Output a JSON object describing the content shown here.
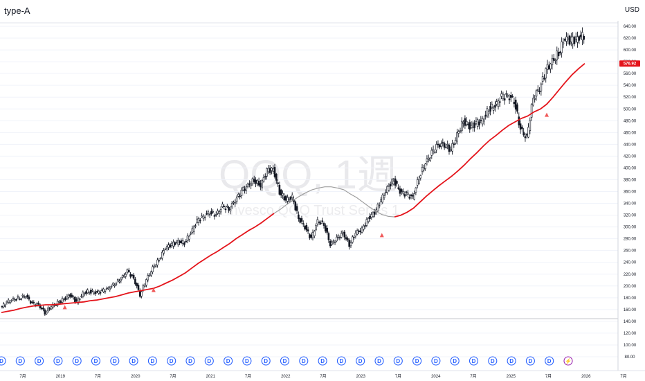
{
  "header": {
    "title": "type-A",
    "currency": "USD"
  },
  "watermark": {
    "symbol": "QQQ, 1週",
    "description": "Invesco QQQ Trust Series 1"
  },
  "price_label": {
    "value": "576.92",
    "color": "#e4141b"
  },
  "colors": {
    "ma": "#e4141b",
    "ma_gray": "#9e9e9e",
    "candles": "#131722",
    "arrow": "#f05a5a",
    "dividend": "#2962ff",
    "split": "#9c27b0"
  },
  "icons": {
    "dividend": "dividend-badge-icon",
    "split": "split-badge-icon",
    "signal": "up-triangle-icon"
  },
  "chart_data": {
    "type": "candlestick",
    "y_scale": "linear",
    "ylim": [
      80,
      640
    ],
    "y_ticks": [
      "640.00",
      "620.00",
      "600.00",
      "580.00",
      "560.00",
      "540.00",
      "520.00",
      "500.00",
      "480.00",
      "460.00",
      "440.00",
      "420.00",
      "400.00",
      "380.00",
      "360.00",
      "340.00",
      "320.00",
      "300.00",
      "280.00",
      "260.00",
      "240.00",
      "220.00",
      "200.00",
      "180.00",
      "160.00",
      "140.00",
      "120.00",
      "100.00",
      "80.00"
    ],
    "x_ticks": [
      "7月",
      "2019",
      "7月",
      "2020",
      "7月",
      "2021",
      "7月",
      "2022",
      "7月",
      "2023",
      "7月",
      "2024",
      "7月",
      "2025",
      "7月",
      "2026",
      "7月"
    ],
    "x": [
      "2018-05",
      "2018-06",
      "2018-07",
      "2018-08",
      "2018-09",
      "2018-10",
      "2018-11",
      "2018-12",
      "2019-01",
      "2019-02",
      "2019-03",
      "2019-04",
      "2019-05",
      "2019-06",
      "2019-07",
      "2019-08",
      "2019-09",
      "2019-10",
      "2019-11",
      "2019-12",
      "2020-01",
      "2020-02",
      "2020-03",
      "2020-04",
      "2020-05",
      "2020-06",
      "2020-07",
      "2020-08",
      "2020-09",
      "2020-10",
      "2020-11",
      "2020-12",
      "2021-01",
      "2021-02",
      "2021-03",
      "2021-04",
      "2021-05",
      "2021-06",
      "2021-07",
      "2021-08",
      "2021-09",
      "2021-10",
      "2021-11",
      "2021-12",
      "2022-01",
      "2022-02",
      "2022-03",
      "2022-04",
      "2022-05",
      "2022-06",
      "2022-07",
      "2022-08",
      "2022-09",
      "2022-10",
      "2022-11",
      "2022-12",
      "2023-01",
      "2023-02",
      "2023-03",
      "2023-04",
      "2023-05",
      "2023-06",
      "2023-07",
      "2023-08",
      "2023-09",
      "2023-10",
      "2023-11",
      "2023-12",
      "2024-01",
      "2024-02",
      "2024-03",
      "2024-04",
      "2024-05",
      "2024-06",
      "2024-07",
      "2024-08",
      "2024-09",
      "2024-10",
      "2024-11",
      "2024-12",
      "2025-01",
      "2025-02",
      "2025-03",
      "2025-04",
      "2025-05",
      "2025-06",
      "2025-07",
      "2025-08",
      "2025-09",
      "2025-10",
      "2025-11",
      "2025-12",
      "2026-01"
    ],
    "series": [
      {
        "type": "candlestick",
        "close": [
          163,
          172,
          177,
          180,
          183,
          170,
          168,
          155,
          165,
          171,
          178,
          185,
          173,
          187,
          191,
          189,
          191,
          196,
          204,
          212,
          225,
          213,
          185,
          210,
          230,
          245,
          265,
          270,
          275,
          273,
          290,
          310,
          318,
          325,
          320,
          335,
          330,
          345,
          360,
          370,
          380,
          370,
          395,
          398,
          360,
          345,
          350,
          315,
          300,
          280,
          310,
          305,
          270,
          280,
          290,
          270,
          290,
          295,
          315,
          325,
          345,
          365,
          380,
          360,
          355,
          350,
          385,
          408,
          425,
          440,
          440,
          430,
          455,
          480,
          470,
          475,
          480,
          500,
          505,
          520,
          522,
          515,
          465,
          450,
          520,
          535,
          565,
          580,
          595,
          620,
          615,
          620,
          625
        ]
      },
      {
        "type": "line",
        "name": "",
        "values": [
          155,
          157,
          159,
          162,
          164,
          166,
          167,
          168,
          168,
          169,
          170,
          171,
          172,
          173,
          175,
          176,
          178,
          180,
          182,
          185,
          188,
          190,
          192,
          194,
          196,
          200,
          205,
          210,
          216,
          222,
          230,
          238,
          245,
          252,
          258,
          265,
          272,
          280,
          287,
          294,
          300,
          307,
          315,
          323,
          330,
          338,
          345,
          352,
          358,
          363,
          366,
          368,
          368,
          366,
          363,
          356,
          350,
          342,
          334,
          327,
          321,
          318,
          317,
          320,
          325,
          332,
          342,
          352,
          361,
          370,
          378,
          386,
          395,
          405,
          416,
          426,
          437,
          447,
          455,
          464,
          472,
          478,
          484,
          488,
          495,
          500,
          508,
          520,
          533,
          546,
          558,
          568,
          577
        ]
      }
    ]
  }
}
